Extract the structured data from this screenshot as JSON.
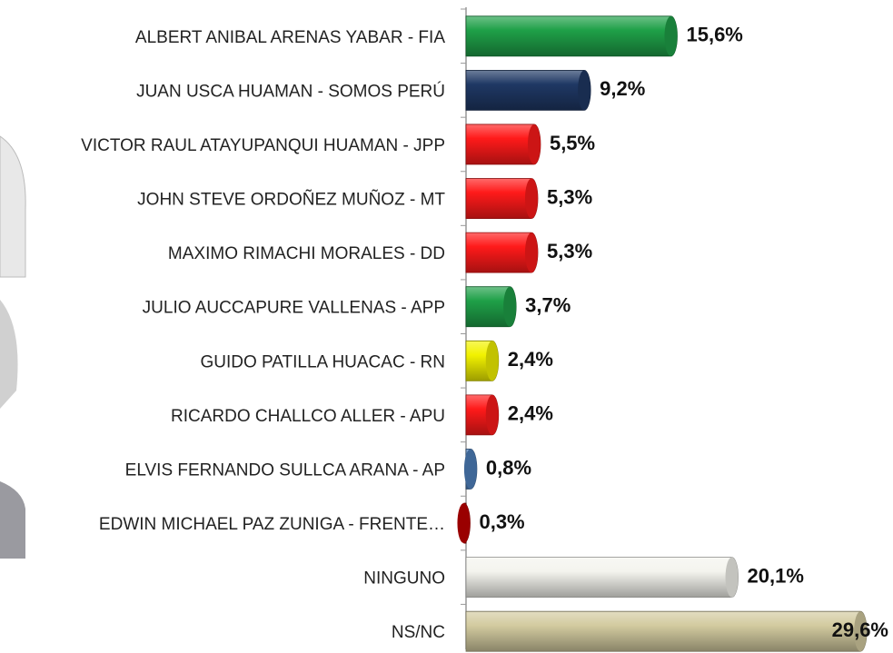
{
  "chart_data": {
    "type": "bar",
    "orientation": "horizontal",
    "categories": [
      "ALBERT ANIBAL ARENAS YABAR - FIA",
      "JUAN USCA HUAMAN - SOMOS PERÚ",
      "VICTOR RAUL ATAYUPANQUI HUAMAN - JPP",
      "JOHN STEVE ORDOÑEZ MUÑOZ - MT",
      "MAXIMO RIMACHI MORALES - DD",
      "JULIO AUCCAPURE VALLENAS - APP",
      "GUIDO PATILLA HUACAC - RN",
      "RICARDO CHALLCO ALLER - APU",
      "ELVIS FERNANDO SULLCA ARANA  - AP",
      "EDWIN MICHAEL PAZ ZUNIGA - FRENTE…",
      "NINGUNO",
      "NS/NC"
    ],
    "values": [
      15.6,
      9.2,
      5.5,
      5.3,
      5.3,
      3.7,
      2.4,
      2.4,
      0.8,
      0.3,
      20.1,
      29.6
    ],
    "value_labels": [
      "15,6%",
      "9,2%",
      "5,5%",
      "5,3%",
      "5,3%",
      "3,7%",
      "2,4%",
      "2,4%",
      "0,8%",
      "0,3%",
      "20,1%",
      "29,6%"
    ],
    "colors": [
      "#1fa048",
      "#1f3864",
      "#ff1a1a",
      "#ff1a1a",
      "#ff1a1a",
      "#1fa048",
      "#f2f200",
      "#ff1a1a",
      "#4f81bd",
      "#c00000",
      "#f4f4ee",
      "#d3cba0"
    ],
    "xlim": [
      0,
      31
    ]
  }
}
